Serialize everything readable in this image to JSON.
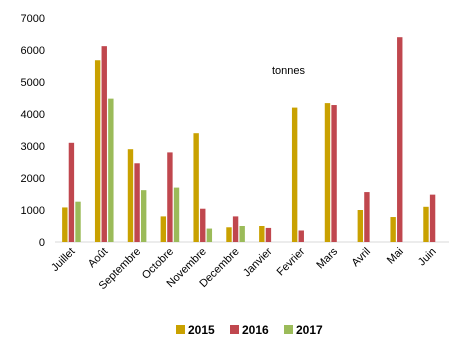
{
  "chart_data": {
    "type": "bar",
    "title": "",
    "xlabel": "",
    "ylabel": "",
    "annotation": "tonnes",
    "categories": [
      "Juillet",
      "Août",
      "Septembre",
      "Octobre",
      "Novembre",
      "Decembre",
      "Janvier",
      "Fevrier",
      "Mars",
      "Avril",
      "Mai",
      "Juin"
    ],
    "ylim": [
      0,
      7000
    ],
    "yticks": [
      0,
      1000,
      2000,
      3000,
      4000,
      5000,
      6000,
      7000
    ],
    "grid": false,
    "legend_position": "bottom",
    "series": [
      {
        "name": "2015",
        "color": "#C9A100",
        "values": [
          1080,
          5680,
          2900,
          800,
          3400,
          460,
          500,
          4200,
          4340,
          1000,
          780,
          1100
        ]
      },
      {
        "name": "2016",
        "color": "#C0474E",
        "values": [
          3100,
          6120,
          2460,
          2800,
          1040,
          800,
          440,
          360,
          4280,
          1560,
          6400,
          1480
        ]
      },
      {
        "name": "2017",
        "color": "#9BBB59",
        "values": [
          1260,
          4480,
          1620,
          1700,
          420,
          500,
          null,
          null,
          null,
          null,
          null,
          null
        ]
      }
    ]
  }
}
